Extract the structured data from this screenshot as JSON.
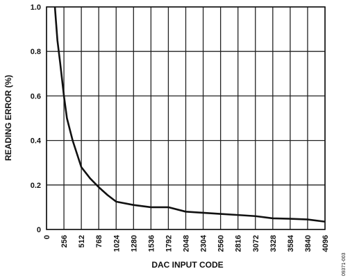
{
  "chart_data": {
    "type": "line",
    "x_label": "DAC INPUT CODE",
    "y_label": "READING ERROR (%)",
    "figure_id": "09371-003",
    "x": [
      123,
      160,
      200,
      256,
      300,
      384,
      512,
      640,
      768,
      896,
      1024,
      1280,
      1536,
      1792,
      2048,
      2304,
      2560,
      2816,
      3072,
      3328,
      3584,
      3840,
      4096
    ],
    "values": [
      1.0,
      0.85,
      0.75,
      0.6,
      0.5,
      0.4,
      0.28,
      0.23,
      0.19,
      0.155,
      0.125,
      0.11,
      0.1,
      0.1,
      0.08,
      0.075,
      0.07,
      0.065,
      0.06,
      0.05,
      0.048,
      0.045,
      0.035
    ],
    "color": "#111111",
    "xlim": [
      0,
      4096
    ],
    "xticks": [
      0,
      256,
      512,
      768,
      1024,
      1280,
      1536,
      1792,
      2048,
      2304,
      2560,
      2816,
      3072,
      3328,
      3584,
      3840,
      4096
    ],
    "ylim": [
      0,
      1
    ],
    "yticks": [
      0,
      0.2,
      0.4,
      0.6,
      0.8,
      {
        "value": 1,
        "label": "1.0"
      }
    ],
    "grid": true
  }
}
